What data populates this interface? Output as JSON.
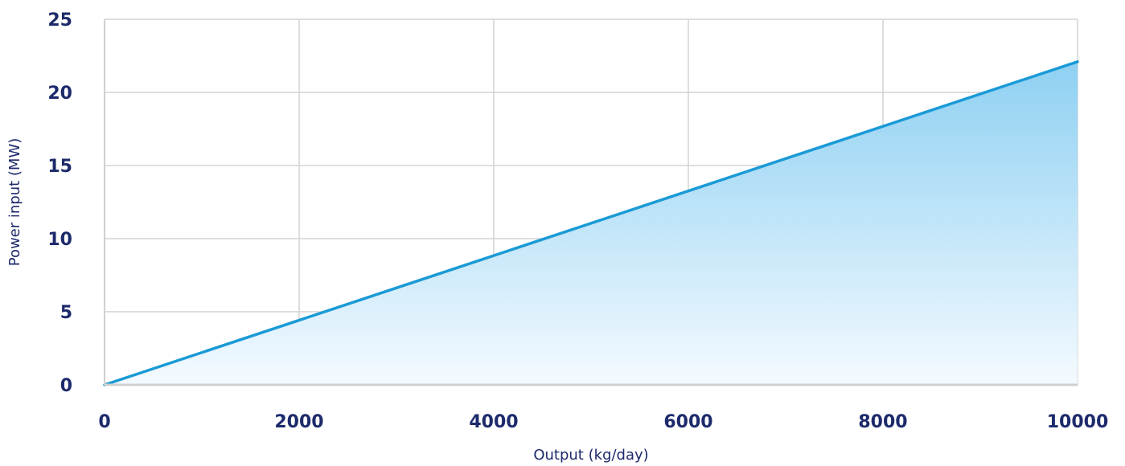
{
  "chart_data": {
    "type": "area",
    "title": "",
    "xlabel": "Output (kg/day)",
    "ylabel": "Power input (MW)",
    "xlim": [
      0,
      10000
    ],
    "ylim": [
      0,
      25
    ],
    "x_ticks": [
      0,
      2000,
      4000,
      6000,
      8000,
      10000
    ],
    "y_ticks": [
      0,
      5,
      10,
      15,
      20,
      25
    ],
    "grid": true,
    "legend": "none",
    "series": [
      {
        "x": [
          0,
          10000
        ],
        "y": [
          0,
          22.1
        ]
      }
    ],
    "colors": {
      "line": "#1a9ad6",
      "fill_top": "#8ed0f2",
      "fill_bottom": "#f4faff",
      "grid": "#d3d3d3",
      "axis": "#d0d0d0",
      "tick_text": "#1d2a6b",
      "axis_title_text": "#1d2a6b"
    }
  }
}
